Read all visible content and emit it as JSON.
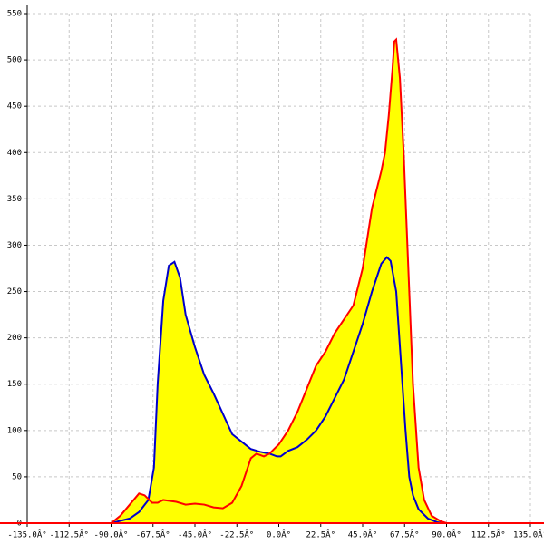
{
  "chart_data": {
    "type": "area-line",
    "xlim": [
      -135,
      135
    ],
    "ylim": [
      0,
      550
    ],
    "xticks": [
      {
        "value": -135,
        "label": "-135.0Â°"
      },
      {
        "value": -112.5,
        "label": "-112.5Â°"
      },
      {
        "value": -90,
        "label": "-90.0Â°"
      },
      {
        "value": -67.5,
        "label": "-67.5Â°"
      },
      {
        "value": -45,
        "label": "-45.0Â°"
      },
      {
        "value": -22.5,
        "label": "-22.5Â°"
      },
      {
        "value": 0,
        "label": "0.0Â°"
      },
      {
        "value": 22.5,
        "label": "22.5Â°"
      },
      {
        "value": 45,
        "label": "45.0Â°"
      },
      {
        "value": 67.5,
        "label": "67.5Â°"
      },
      {
        "value": 90,
        "label": "90.0Â°"
      },
      {
        "value": 112.5,
        "label": "112.5Â°"
      },
      {
        "value": 135,
        "label": "135.0Â°"
      }
    ],
    "yticks": [
      0,
      50,
      100,
      150,
      200,
      250,
      300,
      350,
      400,
      450,
      500,
      550
    ],
    "grid": true,
    "fill": "#ffff00",
    "axis_color": "#ff0000",
    "series": [
      {
        "color": "#ff0000",
        "x": [
          -90,
          -85,
          -80,
          -75,
          -72,
          -68,
          -65,
          -62,
          -55,
          -50,
          -45,
          -40,
          -35,
          -30,
          -25,
          -20,
          -15,
          -12,
          -8,
          -5,
          0,
          5,
          10,
          15,
          20,
          25,
          30,
          35,
          40,
          45,
          50,
          55,
          57,
          59,
          61,
          62,
          63,
          65,
          67,
          70,
          72,
          75,
          78,
          82,
          87,
          90
        ],
        "values": [
          0,
          8,
          20,
          32,
          30,
          22,
          22,
          25,
          23,
          20,
          21,
          20,
          17,
          16,
          22,
          40,
          70,
          75,
          72,
          75,
          85,
          100,
          120,
          145,
          170,
          185,
          205,
          220,
          235,
          275,
          340,
          380,
          400,
          440,
          490,
          520,
          522,
          480,
          400,
          250,
          150,
          60,
          25,
          8,
          2,
          0
        ]
      },
      {
        "color": "#0000cc",
        "x": [
          -90,
          -80,
          -75,
          -70,
          -67,
          -65,
          -62,
          -59,
          -56,
          -53,
          -50,
          -45,
          -40,
          -35,
          -30,
          -25,
          -20,
          -15,
          -10,
          -5,
          -1,
          1,
          5,
          10,
          15,
          20,
          25,
          30,
          35,
          40,
          45,
          50,
          55,
          58,
          60,
          63,
          65,
          68,
          70,
          72,
          75,
          80,
          85,
          88,
          90
        ],
        "values": [
          0,
          5,
          12,
          25,
          60,
          150,
          240,
          278,
          282,
          265,
          225,
          190,
          160,
          140,
          118,
          96,
          88,
          80,
          77,
          75,
          72,
          72,
          78,
          82,
          90,
          100,
          115,
          135,
          155,
          185,
          215,
          250,
          280,
          287,
          283,
          250,
          190,
          100,
          50,
          30,
          15,
          5,
          1,
          0,
          0
        ]
      }
    ]
  }
}
